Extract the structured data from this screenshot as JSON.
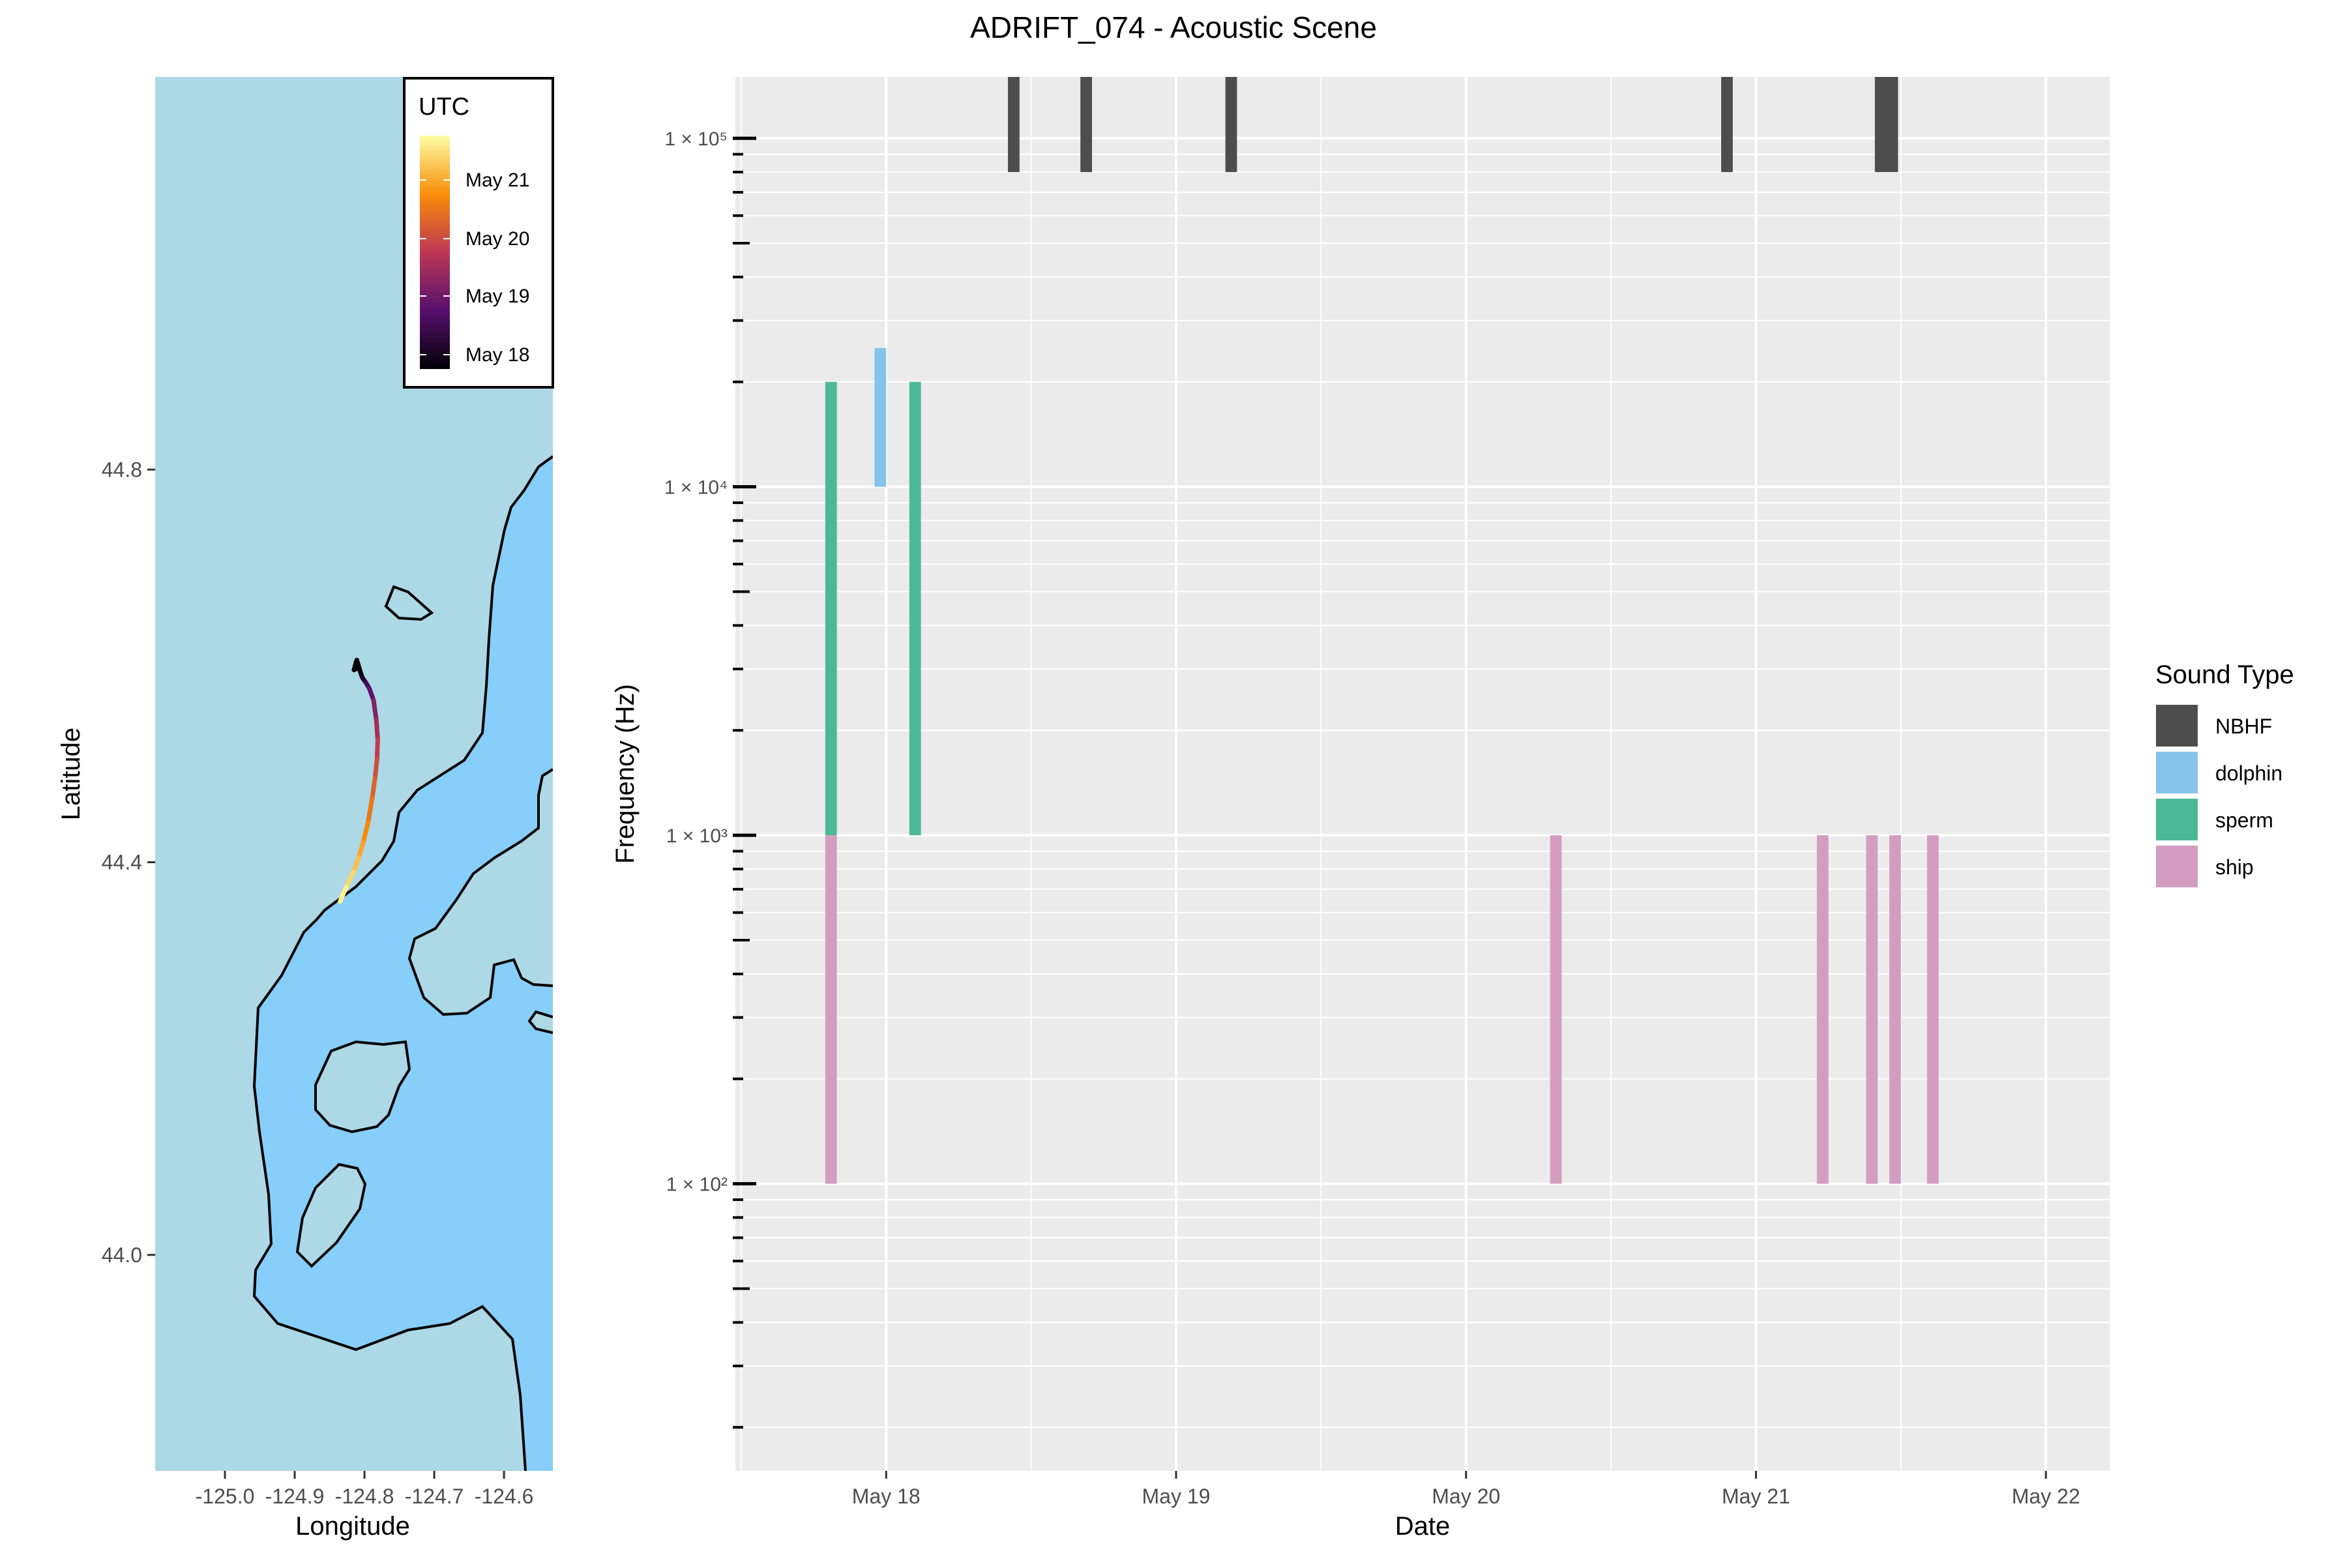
{
  "title": "ADRIFT_074 - Acoustic Scene",
  "colors": {
    "panel_bg": "#EBEBEB",
    "grid": "#FFFFFF",
    "ocean": "#ADD8E6",
    "shallow": "#87CEFA",
    "contour": "#000000",
    "NBHF": "#4D4D4D",
    "dolphin": "#86C3EA",
    "sperm": "#4DB896",
    "ship": "#D39DC0"
  },
  "map": {
    "xlabel": "Longitude",
    "ylabel": "Latitude",
    "x_ticks": [
      "-125.0",
      "-124.9",
      "-124.8",
      "-124.7",
      "-124.6"
    ],
    "x_tick_values": [
      -125.0,
      -124.9,
      -124.8,
      -124.7,
      -124.6
    ],
    "y_ticks": [
      "44.0",
      "44.4",
      "44.8"
    ],
    "y_tick_values": [
      44.0,
      44.4,
      44.8
    ],
    "xlim": [
      -125.1,
      -124.53
    ],
    "ylim": [
      43.78,
      45.2
    ],
    "legend": {
      "title": "UTC",
      "labels": [
        "May 21",
        "May 20",
        "May 19",
        "May 18"
      ],
      "gradient_colors": [
        "#FCFFA4",
        "#F98E09",
        "#BC3754",
        "#57106E",
        "#000004"
      ]
    },
    "track": {
      "lon": [
        -124.805,
        -124.803,
        -124.798,
        -124.793,
        -124.787,
        -124.783,
        -124.781,
        -124.782,
        -124.785,
        -124.789,
        -124.795,
        -124.802,
        -124.808,
        -124.816,
        -124.826,
        -124.835
      ],
      "lat": [
        44.592,
        44.588,
        44.583,
        44.577,
        44.565,
        44.545,
        44.525,
        44.505,
        44.485,
        44.465,
        44.44,
        44.42,
        44.405,
        44.39,
        44.375,
        44.36
      ],
      "time_day": [
        18.0,
        18.2,
        18.5,
        18.8,
        19.1,
        19.4,
        19.7,
        19.9,
        20.1,
        20.3,
        20.5,
        20.7,
        20.9,
        21.1,
        21.3,
        21.5
      ]
    }
  },
  "chart_data": {
    "type": "bar",
    "title": "ADRIFT_074 - Acoustic Scene",
    "xlabel": "Date",
    "ylabel": "Frequency (Hz)",
    "y_scale": "log10",
    "ylim": [
      15,
      150000
    ],
    "xlim_day": [
      17.48,
      22.22
    ],
    "x_ticks": [
      "May 18",
      "May 19",
      "May 20",
      "May 21",
      "May 22"
    ],
    "x_tick_days": [
      18,
      19,
      20,
      21,
      22
    ],
    "y_ticks": [
      "1 × 10²",
      "1 × 10³",
      "1 × 10⁴",
      "1 × 10⁵"
    ],
    "y_tick_values": [
      100,
      1000,
      10000,
      100000
    ],
    "legend": {
      "title": "Sound Type",
      "position": "right",
      "entries": [
        "NBHF",
        "dolphin",
        "sperm",
        "ship"
      ]
    },
    "series": [
      {
        "name": "NBHF",
        "bars": [
          {
            "start": 18.42,
            "end": 18.46,
            "ymin": 80000,
            "ymax": 150000
          },
          {
            "start": 18.67,
            "end": 18.71,
            "ymin": 80000,
            "ymax": 150000
          },
          {
            "start": 19.17,
            "end": 19.21,
            "ymin": 80000,
            "ymax": 150000
          },
          {
            "start": 20.88,
            "end": 20.92,
            "ymin": 80000,
            "ymax": 150000
          },
          {
            "start": 21.41,
            "end": 21.49,
            "ymin": 80000,
            "ymax": 150000
          }
        ]
      },
      {
        "name": "dolphin",
        "bars": [
          {
            "start": 17.96,
            "end": 18.0,
            "ymin": 10000,
            "ymax": 25000
          }
        ]
      },
      {
        "name": "sperm",
        "bars": [
          {
            "start": 17.79,
            "end": 17.83,
            "ymin": 1000,
            "ymax": 20000
          },
          {
            "start": 18.08,
            "end": 18.12,
            "ymin": 1000,
            "ymax": 20000
          }
        ]
      },
      {
        "name": "ship",
        "bars": [
          {
            "start": 17.79,
            "end": 17.83,
            "ymin": 100,
            "ymax": 1000
          },
          {
            "start": 20.29,
            "end": 20.33,
            "ymin": 100,
            "ymax": 1000
          },
          {
            "start": 21.21,
            "end": 21.25,
            "ymin": 100,
            "ymax": 1000
          },
          {
            "start": 21.38,
            "end": 21.42,
            "ymin": 100,
            "ymax": 1000
          },
          {
            "start": 21.46,
            "end": 21.5,
            "ymin": 100,
            "ymax": 1000
          },
          {
            "start": 21.59,
            "end": 21.63,
            "ymin": 100,
            "ymax": 1000
          }
        ]
      }
    ]
  }
}
